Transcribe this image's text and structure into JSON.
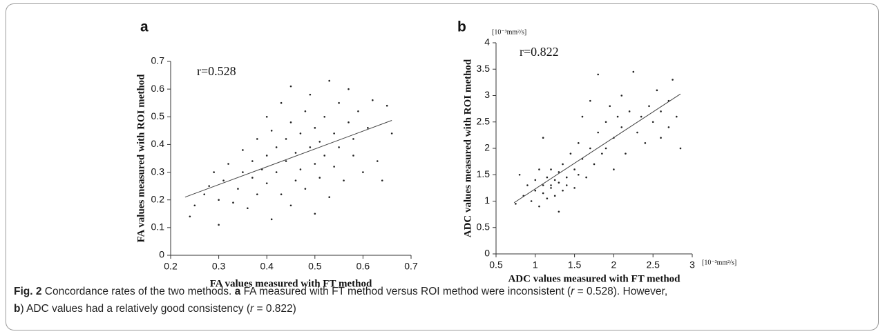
{
  "chart_data": [
    {
      "type": "scatter",
      "panel": "a",
      "annotation": "r=0.528",
      "xlabel": "FA values measured with FT method",
      "ylabel": "FA values measured with ROI method",
      "xlim": [
        0.2,
        0.7
      ],
      "xticks": [
        0.2,
        0.3,
        0.4,
        0.5,
        0.6,
        0.7
      ],
      "ylim": [
        0,
        0.7
      ],
      "yticks": [
        0,
        0.1,
        0.2,
        0.3,
        0.4,
        0.5,
        0.6,
        0.7
      ],
      "color": "#222222",
      "x": [
        0.24,
        0.25,
        0.27,
        0.28,
        0.29,
        0.3,
        0.3,
        0.31,
        0.32,
        0.33,
        0.34,
        0.35,
        0.35,
        0.36,
        0.37,
        0.37,
        0.38,
        0.38,
        0.39,
        0.4,
        0.4,
        0.4,
        0.41,
        0.41,
        0.42,
        0.42,
        0.43,
        0.43,
        0.44,
        0.44,
        0.45,
        0.45,
        0.45,
        0.46,
        0.46,
        0.47,
        0.47,
        0.48,
        0.48,
        0.49,
        0.49,
        0.5,
        0.5,
        0.5,
        0.51,
        0.51,
        0.52,
        0.52,
        0.53,
        0.53,
        0.54,
        0.54,
        0.55,
        0.55,
        0.56,
        0.57,
        0.57,
        0.58,
        0.58,
        0.59,
        0.6,
        0.61,
        0.62,
        0.63,
        0.64,
        0.65,
        0.66
      ],
      "y": [
        0.14,
        0.18,
        0.22,
        0.25,
        0.3,
        0.11,
        0.2,
        0.27,
        0.33,
        0.19,
        0.24,
        0.3,
        0.38,
        0.17,
        0.28,
        0.34,
        0.42,
        0.22,
        0.31,
        0.5,
        0.26,
        0.36,
        0.13,
        0.45,
        0.3,
        0.39,
        0.22,
        0.55,
        0.34,
        0.42,
        0.18,
        0.48,
        0.61,
        0.27,
        0.37,
        0.44,
        0.31,
        0.52,
        0.24,
        0.39,
        0.58,
        0.33,
        0.46,
        0.15,
        0.41,
        0.28,
        0.5,
        0.36,
        0.63,
        0.21,
        0.44,
        0.32,
        0.55,
        0.39,
        0.27,
        0.48,
        0.6,
        0.36,
        0.42,
        0.52,
        0.3,
        0.46,
        0.56,
        0.34,
        0.27,
        0.54,
        0.44
      ],
      "fit": {
        "x": [
          0.23,
          0.66
        ],
        "y": [
          0.21,
          0.487
        ]
      }
    },
    {
      "type": "scatter",
      "panel": "b",
      "annotation": "r=0.822",
      "xlabel": "ADC values measured with FT method",
      "ylabel": "ADC values measured with ROI method",
      "xunit": "[10⁻³mm²/s]",
      "yunit": "[10⁻³mm²/s]",
      "xlim": [
        0.5,
        3
      ],
      "xticks": [
        0.5,
        1,
        1.5,
        2,
        2.5,
        3
      ],
      "ylim": [
        0,
        4
      ],
      "yticks": [
        0,
        0.5,
        1,
        1.5,
        2,
        2.5,
        3,
        3.5,
        4
      ],
      "color": "#222222",
      "x": [
        0.75,
        0.8,
        0.85,
        0.9,
        0.95,
        1.0,
        1.0,
        1.05,
        1.05,
        1.1,
        1.1,
        1.1,
        1.15,
        1.15,
        1.2,
        1.2,
        1.2,
        1.25,
        1.25,
        1.3,
        1.3,
        1.3,
        1.35,
        1.35,
        1.4,
        1.4,
        1.45,
        1.5,
        1.5,
        1.55,
        1.55,
        1.6,
        1.6,
        1.65,
        1.7,
        1.7,
        1.75,
        1.8,
        1.8,
        1.85,
        1.9,
        1.9,
        1.95,
        2.0,
        2.0,
        2.05,
        2.1,
        2.1,
        2.15,
        2.2,
        2.25,
        2.3,
        2.35,
        2.4,
        2.45,
        2.5,
        2.55,
        2.6,
        2.6,
        2.7,
        2.7,
        2.75,
        2.8,
        2.85
      ],
      "y": [
        0.95,
        1.5,
        1.1,
        1.3,
        1.0,
        1.4,
        1.2,
        1.6,
        0.9,
        1.3,
        1.15,
        2.2,
        1.45,
        1.05,
        1.3,
        1.6,
        1.25,
        1.4,
        1.1,
        1.35,
        1.55,
        0.8,
        1.2,
        1.7,
        1.45,
        1.3,
        1.9,
        1.6,
        1.25,
        2.1,
        1.5,
        1.8,
        2.6,
        1.45,
        2.0,
        2.9,
        1.7,
        2.3,
        3.4,
        1.9,
        2.5,
        2.0,
        2.8,
        2.2,
        1.6,
        2.6,
        2.4,
        3.0,
        1.9,
        2.7,
        3.45,
        2.3,
        2.6,
        2.1,
        2.8,
        2.5,
        3.1,
        2.2,
        2.7,
        2.9,
        2.4,
        3.3,
        2.6,
        2.0
      ],
      "fit": {
        "x": [
          0.73,
          2.85
        ],
        "y": [
          0.97,
          3.03
        ]
      }
    }
  ],
  "caption": {
    "lines": [
      [
        {
          "text": "Fig. 2",
          "style": "bold"
        },
        {
          "text": " Concordance rates of the two methods. ",
          "style": "normal"
        },
        {
          "text": "a",
          "style": "bold"
        },
        {
          "text": " FA measured with FT method versus ROI method were inconsistent (",
          "style": "normal"
        },
        {
          "text": "r",
          "style": "italic"
        },
        {
          "text": " = 0.528). However,",
          "style": "normal"
        }
      ],
      [
        {
          "text": "b",
          "style": "bold"
        },
        {
          "text": ") ADC values had a relatively good consistency (",
          "style": "normal"
        },
        {
          "text": "r",
          "style": "italic"
        },
        {
          "text": " = 0.822)",
          "style": "normal"
        }
      ]
    ]
  }
}
